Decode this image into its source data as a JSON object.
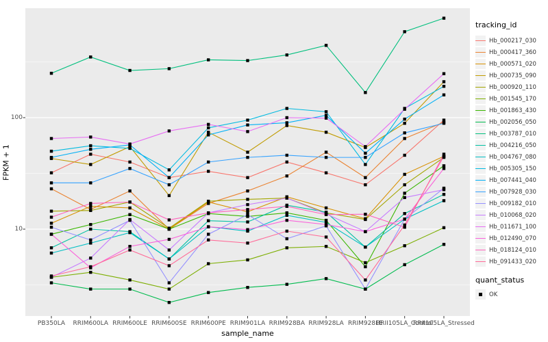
{
  "figure": {
    "background": "#FFFFFF",
    "panel_background": "#EBEBEB",
    "grid_color": "#FFFFFF",
    "axis_text_color": "#4D4D4D",
    "tick_mark_color": "#333333",
    "point_color": "#000000"
  },
  "axes": {
    "x_title": "sample_name",
    "y_title": "FPKM + 1",
    "y_tick_labels": [
      "10",
      "100"
    ],
    "y_scale": "log10"
  },
  "legend": {
    "tracking_title": "tracking_id",
    "quant_title": "quant_status",
    "quant_items": [
      "OK"
    ]
  },
  "chart_data": {
    "type": "line",
    "x_type": "categorical",
    "title": "",
    "xlabel": "sample_name",
    "ylabel": "FPKM + 1",
    "y_scale": "log10",
    "yticks": [
      10,
      100
    ],
    "ylim": [
      1.7,
      950
    ],
    "grid": "major-minor",
    "legend_position": "right",
    "marker": "black-square",
    "categories": [
      "PB350LA",
      "RRIM600LA",
      "RRIM600LE",
      "RRIM600SE",
      "RRIM600PE",
      "RRIM901LA",
      "RRIM928BA",
      "RRIM928LA",
      "RRIM928LE",
      "RRII105LA_Control",
      "RRII105LA_Stressed"
    ],
    "series": [
      {
        "name": "Hb_000217_030",
        "color": "#F8766D",
        "values": [
          32,
          47,
          40,
          29,
          33,
          29,
          40,
          32,
          25,
          46,
          95
        ]
      },
      {
        "name": "Hb_000417_360",
        "color": "#EA8331",
        "values": [
          23,
          15,
          22,
          10,
          17,
          22,
          30,
          49,
          29,
          65,
          91
        ]
      },
      {
        "name": "Hb_000571_020",
        "color": "#D89000",
        "values": [
          11.3,
          16,
          15.5,
          10,
          17.5,
          14.3,
          19.5,
          15.5,
          12.4,
          31,
          45
        ]
      },
      {
        "name": "Hb_000735_090",
        "color": "#C09B00",
        "values": [
          43,
          38,
          55,
          20,
          74,
          49,
          85,
          74,
          54,
          89,
          210
        ]
      },
      {
        "name": "Hb_000920_110",
        "color": "#A3A500",
        "values": [
          14.5,
          14.7,
          17.5,
          10.2,
          17.8,
          18.5,
          19,
          14,
          12.2,
          25,
          44
        ]
      },
      {
        "name": "Hb_001545_170",
        "color": "#7CAE00",
        "values": [
          3.7,
          4.1,
          3.5,
          2.9,
          4.9,
          5.3,
          6.8,
          7,
          5,
          7.1,
          10.3
        ]
      },
      {
        "name": "Hb_001863_430",
        "color": "#39B600",
        "values": [
          9,
          11,
          13.5,
          10,
          13.8,
          13,
          14,
          12,
          4.6,
          21,
          37
        ]
      },
      {
        "name": "Hb_002056_050",
        "color": "#00BB4E",
        "values": [
          3.3,
          2.9,
          2.9,
          2.2,
          2.7,
          3,
          3.2,
          3.6,
          2.9,
          4.8,
          7.3
        ]
      },
      {
        "name": "Hb_003787_010",
        "color": "#00BF7D",
        "values": [
          250,
          350,
          265,
          275,
          330,
          325,
          365,
          445,
          168,
          590,
          780
        ]
      },
      {
        "name": "Hb_004216_050",
        "color": "#00C1A3",
        "values": [
          6.8,
          10,
          9.5,
          5.4,
          11.9,
          11.6,
          16.4,
          14.2,
          6.9,
          13.8,
          20.5
        ]
      },
      {
        "name": "Hb_004767_080",
        "color": "#00BFC4",
        "values": [
          6.1,
          7.5,
          9.3,
          5.4,
          10.5,
          9.6,
          13.3,
          11.5,
          6.9,
          12.3,
          18
        ]
      },
      {
        "name": "Hb_005305_150",
        "color": "#00BAE0",
        "values": [
          50,
          56,
          53,
          34,
          81,
          95,
          121,
          113,
          38,
          121,
          191
        ]
      },
      {
        "name": "Hb_007441_040",
        "color": "#00B0F6",
        "values": [
          44,
          52,
          57,
          29,
          70,
          86,
          90,
          105,
          48,
          97,
          160
        ]
      },
      {
        "name": "Hb_007928_030",
        "color": "#35A2FF",
        "values": [
          26,
          26,
          35,
          25,
          40,
          44,
          46,
          44,
          44,
          73,
          89
        ]
      },
      {
        "name": "Hb_009182_010",
        "color": "#9590FF",
        "values": [
          10.4,
          8,
          12,
          3.3,
          9,
          13.5,
          8.2,
          10.7,
          2.9,
          12.3,
          23.3
        ]
      },
      {
        "name": "Hb_010068_020",
        "color": "#C77CFF",
        "values": [
          3.7,
          5.5,
          12.2,
          6.5,
          14,
          16.6,
          19,
          13.7,
          9.5,
          19.2,
          22.6
        ]
      },
      {
        "name": "Hb_011671_100",
        "color": "#E76BF3",
        "values": [
          65,
          67,
          58,
          76,
          87,
          75,
          100,
          99,
          55,
          119,
          248
        ]
      },
      {
        "name": "Hb_012490_070",
        "color": "#FA62DB",
        "values": [
          9,
          4.5,
          7,
          8.1,
          10.5,
          9.9,
          12,
          11,
          9.5,
          12.3,
          35
        ]
      },
      {
        "name": "Hb_018124_010",
        "color": "#FF62BC",
        "values": [
          12.8,
          17,
          17.5,
          12.1,
          14,
          15,
          16,
          13.5,
          13.6,
          10.4,
          47
        ]
      },
      {
        "name": "Hb_091433_020",
        "color": "#FF6A98",
        "values": [
          3.8,
          4.6,
          6.5,
          4.7,
          8,
          7.5,
          9.6,
          8.5,
          3.5,
          10.9,
          45
        ]
      }
    ],
    "quant_status_values": [
      "OK"
    ]
  }
}
